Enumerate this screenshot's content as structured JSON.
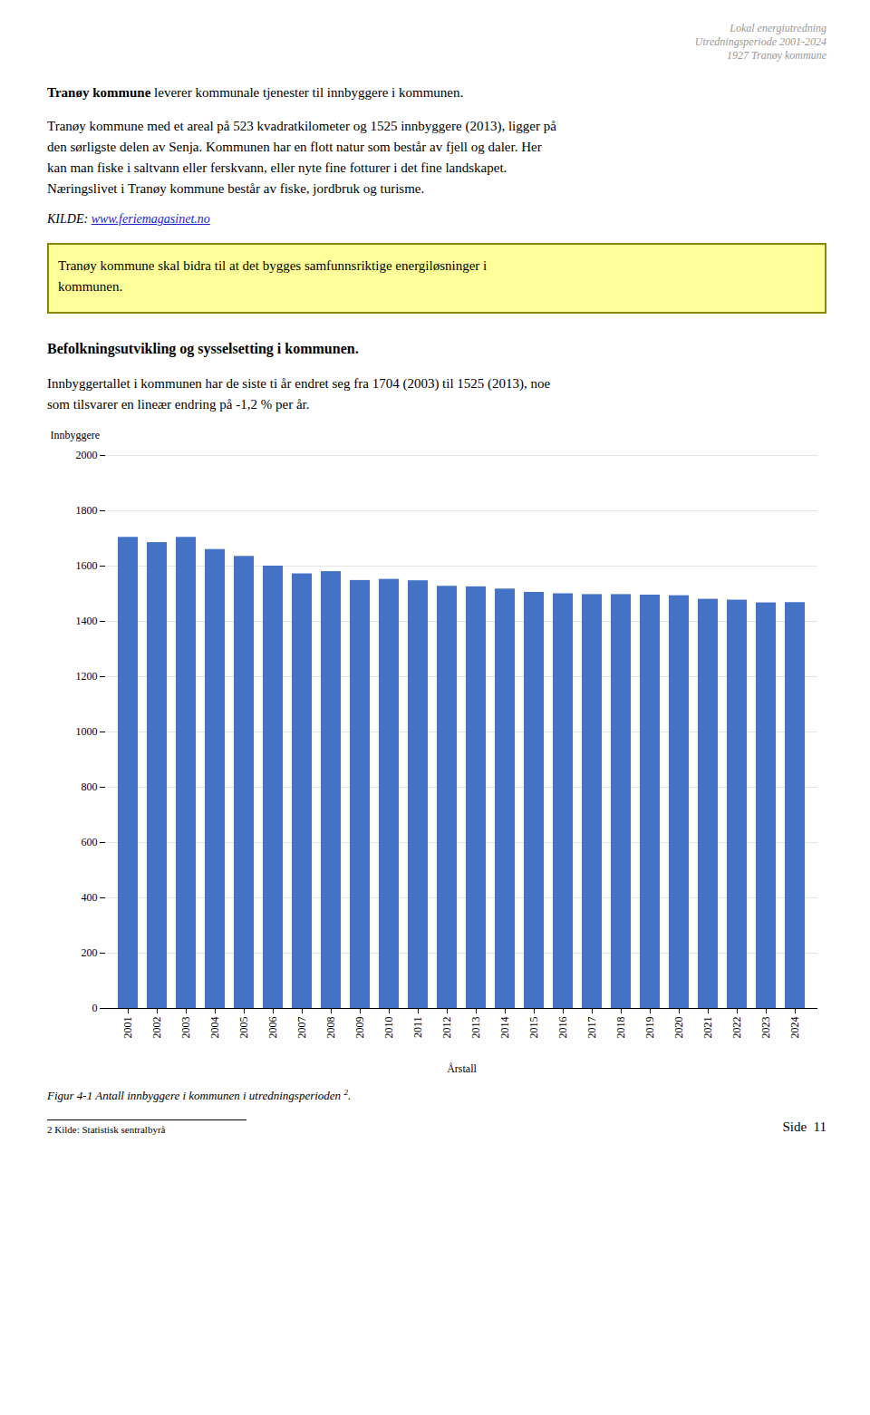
{
  "page": {
    "header": [
      "Lokal energiutredning",
      "Utredningsperiode 2001-2024",
      "1927 Tranøy kommune"
    ],
    "para1_bold": "Tranøy kommune",
    "para1_rest": " leverer kommunale tjenester til innbyggere i kommunen.",
    "para2": "Tranøy kommune med et areal på 523 kvadratkilometer og 1525 innbyggere (2013), ligger på\nden sørligste delen av Senja. Kommunen har en flott natur som består av fjell og daler. Her\nkan man fiske i saltvann eller ferskvann, eller nyte fine fotturer i det fine landskapet.\nNæringslivet i Tranøy kommune består av fiske, jordbruk og turisme.",
    "kilde_label": "KILDE: ",
    "kilde_link": "www.feriemagasinet.no",
    "box_text": "Tranøy kommune skal bidra til at det bygges samfunnsriktige energiløsninger i\nkommunen.",
    "box_color": "#FFFF99",
    "box_border": "#888800",
    "section_title": "Befolkningsutvikling og sysselsetting i kommunen.",
    "body_text": "Innbyggertallet i kommunen har de siste ti år endret seg fra 1704 (2003) til 1525 (2013), noe\nsom tilsvarer en lineær endring på -1,2 % per år.",
    "caption": "Figur 4-1 Antall innbyggere i kommunen i utredningsperioden",
    "caption_note": "2",
    "caption_end": ".",
    "footnote": "2 Kilde: Statistisk sentralbyrå",
    "page_num": "Side  11"
  },
  "chart_data": {
    "type": "bar",
    "categories": [
      "2001",
      "2002",
      "2003",
      "2004",
      "2005",
      "2006",
      "2007",
      "2008",
      "2009",
      "2010",
      "2011",
      "2012",
      "2013",
      "2014",
      "2015",
      "2016",
      "2017",
      "2018",
      "2019",
      "2020",
      "2021",
      "2022",
      "2023",
      "2024"
    ],
    "values": [
      1704,
      1685,
      1704,
      1660,
      1635,
      1600,
      1572,
      1580,
      1548,
      1552,
      1547,
      1527,
      1525,
      1517,
      1505,
      1500,
      1497,
      1497,
      1495,
      1493,
      1480,
      1477,
      1467,
      1468
    ],
    "color": "#4472C4",
    "xlabel": "Årstall",
    "ylabel": "Innbyggere",
    "ylim": [
      0,
      2000
    ],
    "yticks": [
      0,
      200,
      400,
      600,
      800,
      1000,
      1200,
      1400,
      1600,
      1800,
      2000
    ],
    "grid": true
  }
}
